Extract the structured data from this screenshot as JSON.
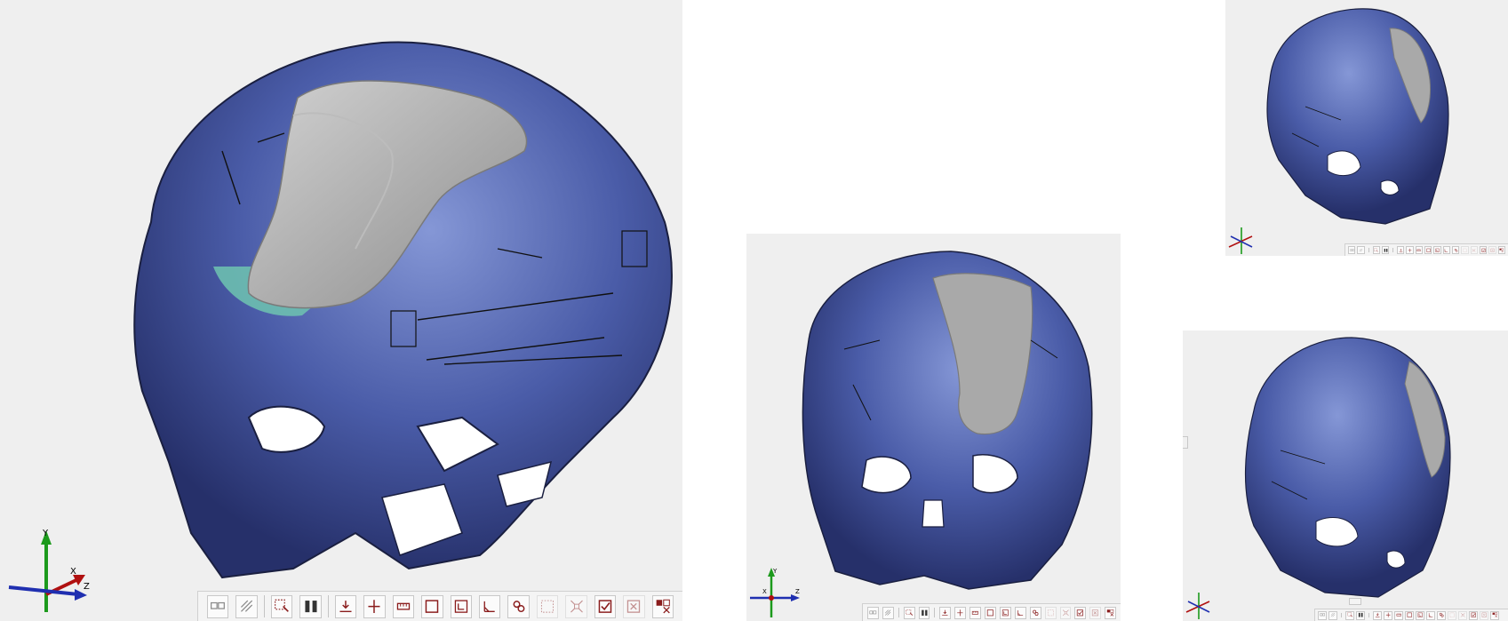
{
  "viewports": [
    {
      "id": "main",
      "view": "oblique-left",
      "implant": true
    },
    {
      "id": "front",
      "view": "frontal",
      "implant": true
    },
    {
      "id": "side-top",
      "view": "oblique-right",
      "implant": true
    },
    {
      "id": "side-bottom",
      "view": "oblique-right",
      "implant": true
    }
  ],
  "axis_triad": {
    "x_label": "X",
    "y_label": "Y",
    "z_label": "Z"
  },
  "colors": {
    "skull": "#4a5ca8",
    "skull_light": "#7c8fd0",
    "skull_dark": "#27336e",
    "implant": "#a9a9a9",
    "mesh_edge": "#6fc4b0",
    "viewport_bg": "#efefef",
    "icon_red": "#8a1c1c",
    "axis_x": "#b01010",
    "axis_y": "#1c9a1c",
    "axis_z": "#1f2fb0"
  },
  "toolbar": [
    {
      "name": "view-mode-icon",
      "disabled": false
    },
    {
      "name": "shading-icon",
      "disabled": false
    },
    {
      "sep": true
    },
    {
      "name": "select-region-icon",
      "disabled": false
    },
    {
      "name": "split-view-icon",
      "disabled": false
    },
    {
      "sep": true
    },
    {
      "name": "plane-cut-icon",
      "disabled": false
    },
    {
      "name": "plane-move-icon",
      "disabled": false
    },
    {
      "name": "measure-distance-icon",
      "disabled": false
    },
    {
      "name": "box-icon",
      "disabled": false
    },
    {
      "name": "frame-icon",
      "disabled": false
    },
    {
      "name": "angle-icon",
      "disabled": false
    },
    {
      "name": "link-icon",
      "disabled": false
    },
    {
      "name": "grid-icon",
      "disabled": true
    },
    {
      "name": "fit-view-icon",
      "disabled": true
    },
    {
      "name": "checkbox-icon",
      "disabled": false
    },
    {
      "name": "close-box-icon",
      "disabled": true
    },
    {
      "name": "export-icon",
      "disabled": false
    }
  ]
}
